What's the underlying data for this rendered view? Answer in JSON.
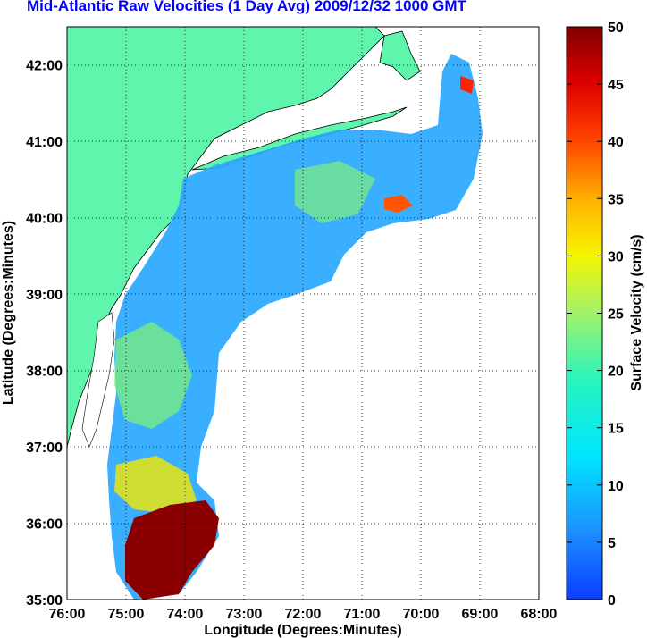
{
  "title": "Mid-Atlantic Raw Velocities (1 Day Avg) 2009/12/32 1000 GMT",
  "map": {
    "xlabel": "Longitude (Degrees:Minutes)",
    "ylabel": "Latitude (Degrees:Minutes)",
    "lon_ticks": [
      "76:00",
      "75:00",
      "74:00",
      "73:00",
      "72:00",
      "71:00",
      "70:00",
      "69:00",
      "68:00"
    ],
    "lat_ticks": [
      "35:00",
      "36:00",
      "37:00",
      "38:00",
      "39:00",
      "40:00",
      "41:00",
      "42:00"
    ],
    "lon_range": [
      -76,
      -68
    ],
    "lat_range": [
      35,
      42.5
    ],
    "grid": true,
    "land_color": "#5ff5ac",
    "land_regions": [
      "New Jersey / New York coast",
      "Long Island",
      "Delmarva",
      "Virginia coast",
      "Cape Cod"
    ]
  },
  "colorbar": {
    "label": "Surface Velocity (cm/s)",
    "ticks": [
      "0",
      "5",
      "10",
      "15",
      "20",
      "25",
      "30",
      "35",
      "40",
      "45",
      "50"
    ],
    "range": [
      0,
      50
    ],
    "colormap": "jet"
  }
}
